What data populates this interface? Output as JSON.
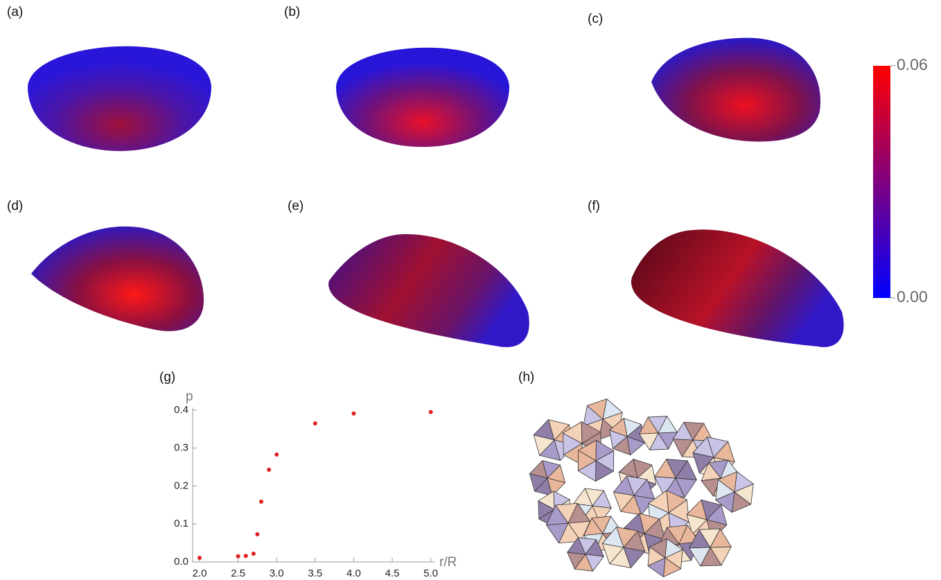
{
  "panels": [
    "(a)",
    "(b)",
    "(c)",
    "(d)",
    "(e)",
    "(f)",
    "(g)",
    "(h)"
  ],
  "chart_data": [
    {
      "type": "colorbar",
      "colors": [
        "#0000ff",
        "#ff0000"
      ],
      "ylim": [
        0,
        0.06
      ],
      "yticks": [
        {
          "value": 0,
          "label": "0.00"
        },
        {
          "value": 0.06,
          "label": "0.06"
        }
      ]
    },
    {
      "type": "scatter",
      "x_label": "r/R",
      "y_label": "p",
      "color": "#e02020",
      "x": [
        2.0,
        2.5,
        2.6,
        2.7,
        2.75,
        2.8,
        2.9,
        3.0,
        3.5,
        4.0,
        5.0
      ],
      "values": [
        0.011,
        0.015,
        0.016,
        0.022,
        0.073,
        0.159,
        0.243,
        0.283,
        0.365,
        0.391,
        0.395
      ],
      "xlim": [
        1.91,
        5.03
      ],
      "ylim": [
        0,
        0.407
      ],
      "xticks": [
        {
          "value": 2.0,
          "label": "2.0"
        },
        2.5,
        {
          "value": 3.0,
          "label": "3.0"
        },
        3.5,
        {
          "value": 4.0,
          "label": "4.0"
        },
        4.5,
        {
          "value": 5.0,
          "label": "5.0"
        }
      ],
      "yticks": [
        {
          "value": 0,
          "label": "0.0"
        },
        0.1,
        0.2,
        0.3,
        0.4
      ]
    }
  ]
}
